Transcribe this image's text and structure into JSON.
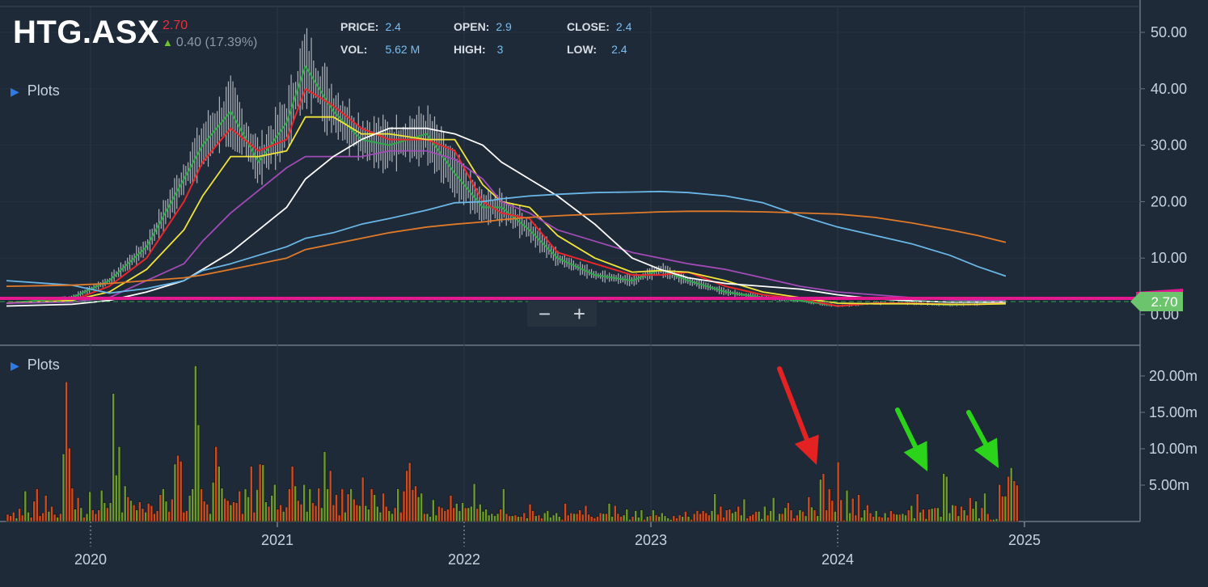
{
  "header": {
    "ticker": "HTG.ASX",
    "last_price": "2.70",
    "change": "0.40 (17.39%)",
    "ohlc": [
      {
        "label": "PRICE:",
        "value": "2.4"
      },
      {
        "label": "VOL:",
        "value": "5.62 M"
      },
      {
        "label": "OPEN:",
        "value": "2.9"
      },
      {
        "label": "HIGH:",
        "value": "3"
      },
      {
        "label": "CLOSE:",
        "value": "2.4"
      },
      {
        "label": "LOW:",
        "value": "2.4"
      }
    ]
  },
  "panels": {
    "price_plots_label": "Plots",
    "volume_plots_label": "Plots"
  },
  "zoom": {
    "minus": "−",
    "plus": "+"
  },
  "price_marker": "2.70",
  "colors": {
    "background": "#1e2a38",
    "candle_up": "#c8cbd0",
    "sma_fast_green": "#2fa84a",
    "sma_red": "#e8262c",
    "sma_yellow": "#f2e33a",
    "sma_purple": "#a04bb6",
    "sma_white": "#ffffff",
    "sma_blue": "#6ab6e6",
    "sma_orange": "#e07a28",
    "price_line": "#e3198f",
    "price_tag": "#6cc56c",
    "volume_up": "#6d9a2e",
    "volume_down": "#d24a1c",
    "arrow_red": "#e52222",
    "arrow_green": "#2bd41a"
  },
  "chart_data": [
    {
      "type": "line",
      "panel": "price",
      "x_tick_labels": [
        "2020",
        "2021",
        "2022",
        "2023",
        "2024",
        "2025"
      ],
      "y_tick_labels": [
        "50.00",
        "40.00",
        "30.00",
        "20.00",
        "10.00",
        "0.00"
      ],
      "ylim": [
        0,
        52
      ],
      "x": [
        2019.55,
        2019.9,
        2020.1,
        2020.3,
        2020.5,
        2020.6,
        2020.75,
        2020.9,
        2021.05,
        2021.15,
        2021.3,
        2021.45,
        2021.6,
        2021.8,
        2021.95,
        2022.1,
        2022.2,
        2022.35,
        2022.5,
        2022.7,
        2022.9,
        2023.05,
        2023.2,
        2023.4,
        2023.6,
        2023.8,
        2024.0,
        2024.2,
        2024.4,
        2024.6,
        2024.75,
        2024.9
      ],
      "series": [
        {
          "values": [
            2,
            3,
            6,
            12,
            24,
            30,
            36,
            27,
            34,
            44,
            36,
            31,
            30,
            32,
            25,
            19,
            19,
            15,
            10,
            7,
            6,
            8,
            6,
            4,
            3,
            2.5,
            1.5,
            2,
            2,
            1.7,
            1.8,
            2.4
          ]
        },
        {
          "values": [
            2,
            2.5,
            5,
            10,
            20,
            27,
            33,
            29,
            31,
            40,
            37,
            33,
            31,
            31,
            29,
            20,
            18,
            17,
            11,
            9,
            7,
            7,
            7.5,
            5,
            3.5,
            2.8,
            1.5,
            2,
            2,
            1.8,
            1.8,
            2
          ]
        },
        {
          "values": [
            2,
            2.5,
            4,
            8,
            15,
            21,
            28,
            28,
            29,
            35,
            35,
            32,
            32,
            31,
            31,
            23,
            20,
            19,
            14,
            10,
            7.5,
            7.8,
            7.5,
            6,
            4,
            3,
            2,
            1.9,
            1.9,
            1.8,
            1.8,
            1.9
          ]
        },
        {
          "values": [
            2,
            2.2,
            3,
            6,
            9,
            13,
            18,
            22,
            26,
            28,
            28,
            28,
            29,
            29,
            27.5,
            24,
            20,
            18,
            15,
            13,
            11,
            10,
            9,
            8,
            6.5,
            5,
            4,
            3.5,
            3,
            2.6,
            2.5,
            2.5
          ]
        },
        {
          "values": [
            1.5,
            1.8,
            2.5,
            4,
            6,
            8,
            11,
            15,
            19,
            24,
            28,
            31,
            33,
            33,
            32,
            30,
            27,
            24,
            21,
            16,
            10,
            8,
            6.5,
            5.5,
            5,
            4.5,
            3.5,
            2.8,
            2.4,
            2.2,
            2.2,
            2.2
          ]
        },
        {
          "values": [
            6,
            5.2,
            3.8,
            4.6,
            6,
            7.8,
            9,
            10.5,
            12,
            13.5,
            14.5,
            16,
            17,
            18.5,
            19.8,
            20,
            20.5,
            21,
            21.3,
            21.6,
            21.7,
            21.8,
            21.6,
            21,
            19.8,
            17.5,
            15.5,
            14,
            12.5,
            10.5,
            8.5,
            6.8
          ]
        },
        {
          "values": [
            5,
            5.2,
            5.5,
            6,
            6.5,
            7,
            8,
            9,
            10,
            11.5,
            12.5,
            13.5,
            14.5,
            15.5,
            16,
            16.4,
            16.8,
            17.2,
            17.5,
            17.8,
            18,
            18.2,
            18.3,
            18.3,
            18.2,
            18,
            17.8,
            17.2,
            16.2,
            15,
            14,
            12.8
          ]
        }
      ]
    },
    {
      "type": "bar",
      "panel": "volume",
      "y_tick_labels": [
        "20.00m",
        "15.00m",
        "10.00m",
        "5.00m"
      ],
      "ylim": [
        0,
        21
      ],
      "x_range": [
        2019.55,
        2024.97
      ],
      "values": [
        1,
        0.8,
        1.3,
        0.5,
        1.8,
        0.9,
        4.2,
        1.3,
        0.6,
        2.8,
        4.5,
        0.8,
        1.2,
        3.6,
        1.4,
        2.1,
        1,
        0.6,
        1.1,
        9.3,
        19.2,
        10.1,
        4.6,
        1.7,
        3.3,
        1.9,
        0.6,
        1.1,
        4.1,
        1.6,
        1.1,
        1.6,
        4.3,
        2.6,
        1.9,
        2.6,
        17.6,
        6.4,
        10.3,
        1.3,
        4.9,
        3.4,
        2.9,
        2.3,
        1.6,
        2.7,
        1.8,
        1.3,
        2.5,
        2.2,
        1.1,
        1.5,
        3.7,
        4.5,
        2.8,
        1.4,
        3.1,
        7.9,
        9.1,
        8.3,
        1.3,
        1.5,
        3.6,
        4.5,
        21.4,
        13.3,
        4.5,
        2.8,
        2.4,
        1.1,
        5.4,
        10.3,
        7.6,
        4.6,
        3.2,
        2.9,
        2.3,
        2.7,
        2.6,
        4.2,
        1.1,
        4.5,
        3.4,
        7.6,
        1.3,
        4.4,
        7.9,
        7.8,
        2.7,
        2.1,
        3.6,
        5.1,
        1.7,
        2.3,
        1.4,
        2,
        4.5,
        7.6,
        4.9,
        2.9,
        2.4,
        5.1,
        1.4,
        4.5,
        2.6,
        2.2,
        4.6,
        1.9,
        9.6,
        4.5,
        7,
        2.3,
        3.7,
        0.9,
        4.5,
        1.3,
        3.8,
        4.5,
        3.1,
        2.3,
        2.2,
        6.1,
        2.2,
        1.7,
        4.5,
        3.7,
        2.1,
        1.3,
        3.9,
        2.1,
        1.5,
        1.1,
        1.9,
        4.5,
        1.3,
        4.2,
        7,
        8.1,
        4.4,
        4.9,
        3.4,
        3.9,
        1.1,
        1.1,
        0.7,
        3,
        0.9,
        2.1,
        1.9,
        1.5,
        1.7,
        3.6,
        1.9,
        2.5,
        1.5,
        2.6,
        1.9,
        1.9,
        2.1,
        5.2,
        1.8,
        2.4,
        1.4,
        1.7,
        0.9,
        1.1,
        0.8,
        1.1,
        1.7,
        4.5,
        1.1,
        0.8,
        0.8,
        0.9,
        0.7,
        0.7,
        1.2,
        0.5,
        2.4,
        1.5,
        0.8,
        0.9,
        0.5,
        1.2,
        1.5,
        0.6,
        0.9,
        1.2,
        0.7,
        0.3,
        2.5,
        0.9,
        1.2,
        1.1,
        1.1,
        1.6,
        1,
        2.2,
        1,
        0.7,
        0.5,
        0.7,
        1.2,
        1.1,
        1.1,
        2.5,
        0.7,
        2.2,
        1.1,
        0.7,
        0.9,
        1.7,
        0.3,
        0.7,
        1.5,
        0.6,
        1.6,
        0.3,
        0.7,
        0.8,
        1.6,
        0.9,
        0.7,
        1.2,
        0.8,
        0.5,
        0.3,
        0.8,
        0.5,
        0.9,
        0.7,
        1.4,
        0.7,
        0.3,
        1.1,
        1.5,
        1.1,
        1.5,
        1.2,
        0.9,
        1.5,
        3.8,
        1,
        2.1,
        0.6,
        1.6,
        1.7,
        1.2,
        1.4,
        2.1,
        0.9,
        3.1,
        0.5,
        0.8,
        1,
        1.4,
        1.4,
        0.4,
        2.1,
        0.9,
        1.5,
        3.3,
        0.2,
        1.1,
        1.1,
        1.9,
        2.6,
        1.6,
        0.5,
        0.9,
        1.6,
        1.4,
        0.8,
        3.4,
        2,
        1.6,
        0.8,
        5.8,
        6.6,
        1.6,
        4.5,
        2.9,
        1.4,
        8.2,
        3,
        0.2,
        4.3,
        1.2,
        3.2,
        0.9,
        3.7,
        0.6,
        1.6,
        2.3,
        1.2,
        0.7,
        1.5,
        0.7,
        0.6,
        1.2,
        0.6,
        1.5,
        1.1,
        1,
        1,
        1.1,
        0.9,
        1.6,
        2.2,
        0.5,
        3.8,
        1.3,
        1.7,
        0.4,
        1.7,
        1.8,
        1.9,
        1.9,
        0.7,
        6.6,
        6.2,
        1.2,
        2.3,
        2.2,
        0.8,
        2.1,
        1.6,
        0.9,
        3.3,
        1.8,
        2.8,
        0.5,
        1.9,
        3.9,
        1.1,
        0.3,
        0.3,
        0.4,
        5.1,
        3.5,
        3.5,
        6.2,
        7.4,
        5.6,
        5
      ]
    }
  ],
  "annotations": {
    "red_arrows": 1,
    "green_arrows": 2
  }
}
